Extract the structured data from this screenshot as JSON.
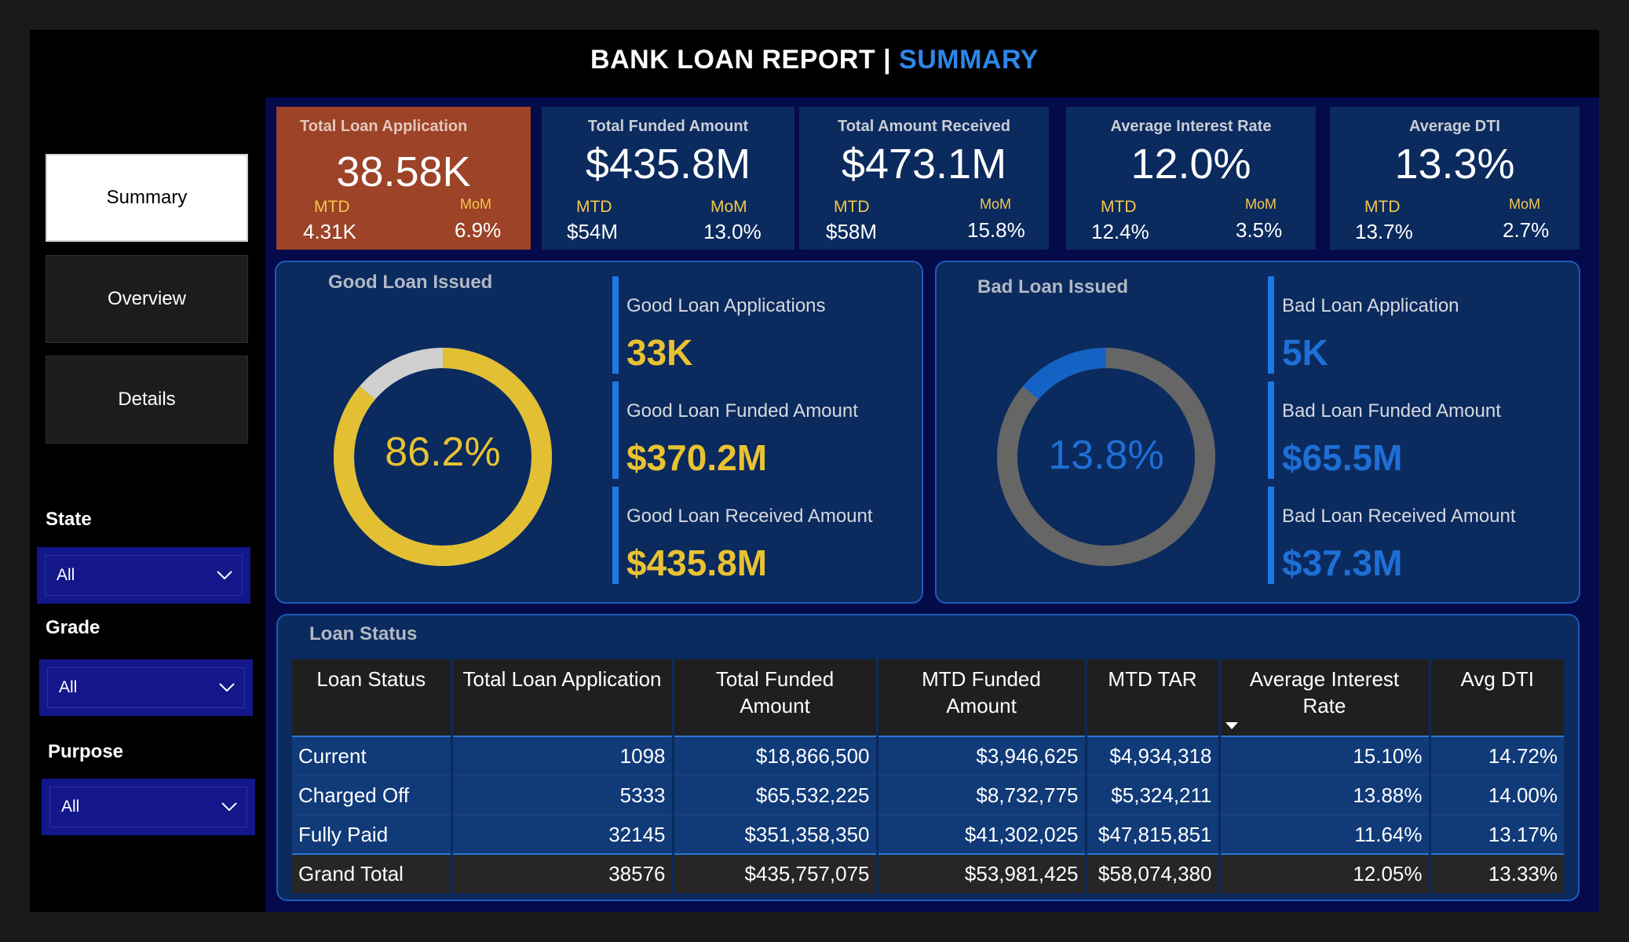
{
  "header": {
    "title_main": "BANK LOAN REPORT | ",
    "title_accent": "SUMMARY"
  },
  "sidebar": {
    "nav": [
      {
        "label": "Summary",
        "active": true
      },
      {
        "label": "Overview",
        "active": false
      },
      {
        "label": "Details",
        "active": false
      }
    ],
    "filters": [
      {
        "label": "State",
        "value": "All"
      },
      {
        "label": "Grade",
        "value": "All"
      },
      {
        "label": "Purpose",
        "value": "All"
      }
    ]
  },
  "kpis": [
    {
      "title": "Total Loan Application",
      "value": "38.58K",
      "mtd_label": "MTD",
      "mom_label": "MoM",
      "mtd": "4.31K",
      "mom": "6.9%"
    },
    {
      "title": "Total Funded Amount",
      "value": "$435.8M",
      "mtd_label": "MTD",
      "mom_label": "MoM",
      "mtd": "$54M",
      "mom": "13.0%"
    },
    {
      "title": "Total Amount Received",
      "value": "$473.1M",
      "mtd_label": "MTD",
      "mom_label": "MoM",
      "mtd": "$58M",
      "mom": "15.8%"
    },
    {
      "title": "Average Interest Rate",
      "value": "12.0%",
      "mtd_label": "MTD",
      "mom_label": "MoM",
      "mtd": "12.4%",
      "mom": "3.5%"
    },
    {
      "title": "Average DTI",
      "value": "13.3%",
      "mtd_label": "MTD",
      "mom_label": "MoM",
      "mtd": "13.7%",
      "mom": "2.7%"
    }
  ],
  "good_loan": {
    "title": "Good Loan Issued",
    "percent_label": "86.2%",
    "percent": 0.862,
    "colors": {
      "fill": "#e2bf33",
      "rest": "#d0d0d0"
    },
    "metrics": [
      {
        "label": "Good Loan Applications",
        "value": "33K"
      },
      {
        "label": "Good Loan Funded Amount",
        "value": "$370.2M"
      },
      {
        "label": "Good Loan Received Amount",
        "value": "$435.8M"
      }
    ]
  },
  "bad_loan": {
    "title": "Bad Loan Issued",
    "percent_label": "13.8%",
    "percent": 0.138,
    "colors": {
      "fill": "#1463c4",
      "rest": "#666666"
    },
    "metrics": [
      {
        "label": "Bad Loan Application",
        "value": "5K"
      },
      {
        "label": "Bad Loan Funded Amount",
        "value": "$65.5M"
      },
      {
        "label": "Bad Loan Received Amount",
        "value": "$37.3M"
      }
    ]
  },
  "loan_status": {
    "title": "Loan Status",
    "columns": [
      "Loan Status",
      "Total Loan Application",
      "Total Funded Amount",
      "MTD Funded Amount",
      "MTD TAR",
      "Average Interest Rate",
      "Avg DTI"
    ],
    "rows": [
      [
        "Current",
        "1098",
        "$18,866,500",
        "$3,946,625",
        "$4,934,318",
        "15.10%",
        "14.72%"
      ],
      [
        "Charged Off",
        "5333",
        "$65,532,225",
        "$8,732,775",
        "$5,324,211",
        "13.88%",
        "14.00%"
      ],
      [
        "Fully Paid",
        "32145",
        "$351,358,350",
        "$41,302,025",
        "$47,815,851",
        "11.64%",
        "13.17%"
      ]
    ],
    "total": [
      "Grand Total",
      "38576",
      "$435,757,075",
      "$53,981,425",
      "$58,074,380",
      "12.05%",
      "13.33%"
    ]
  }
}
